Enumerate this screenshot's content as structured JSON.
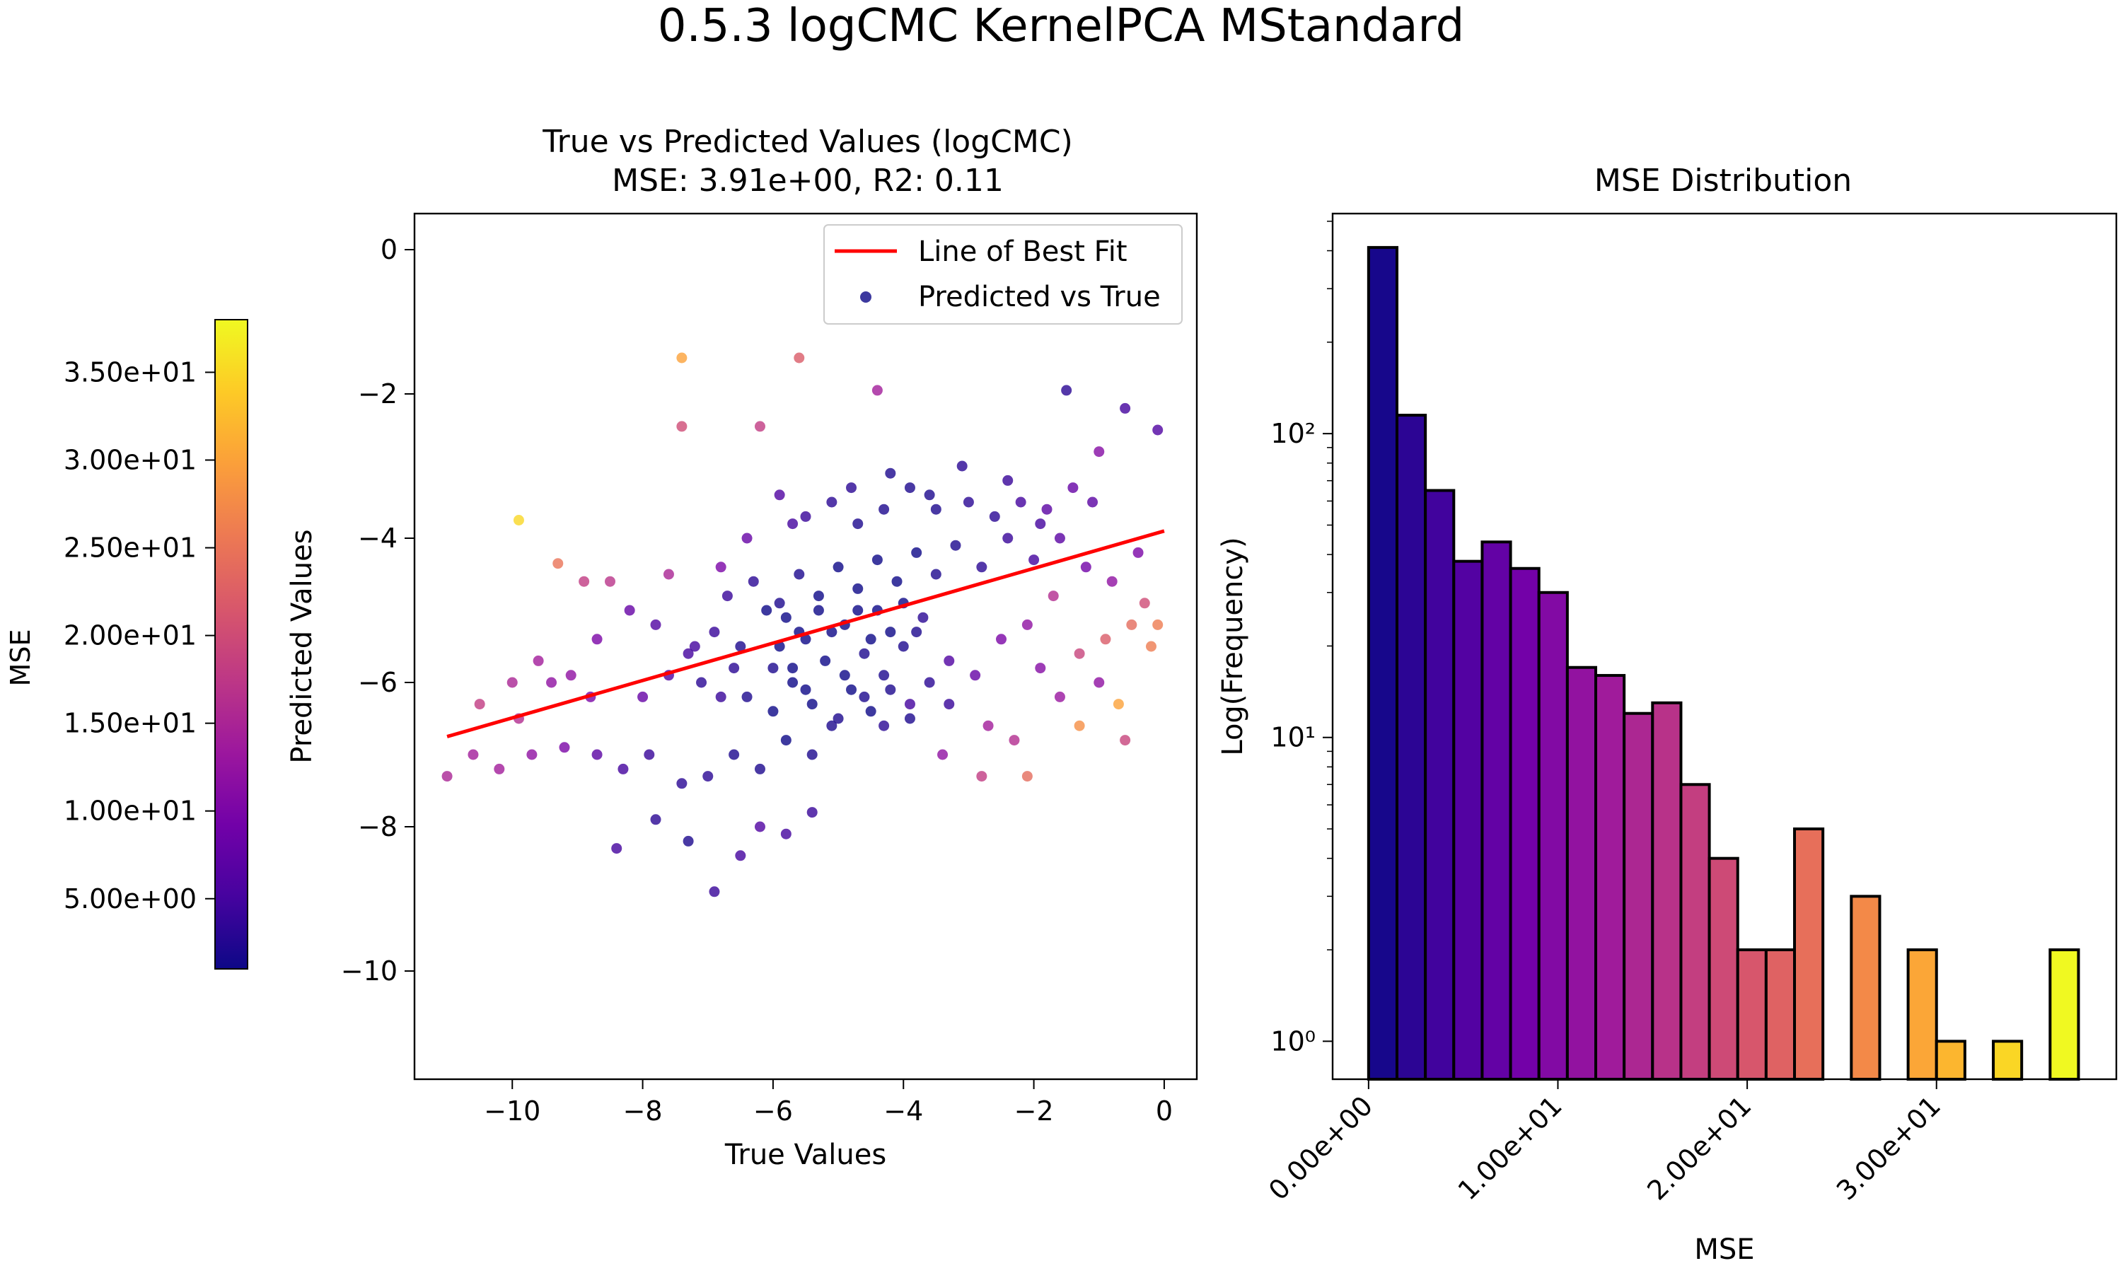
{
  "figure": {
    "suptitle": "0.5.3 logCMC KernelPCA MStandard"
  },
  "colorbar": {
    "label": "MSE",
    "ticks": [
      "5.00e+00",
      "1.00e+01",
      "1.50e+01",
      "2.00e+01",
      "2.50e+01",
      "3.00e+01",
      "3.50e+01"
    ],
    "tick_values": [
      5,
      10,
      15,
      20,
      25,
      30,
      35
    ],
    "range": [
      1,
      38
    ],
    "colormap": "plasma"
  },
  "colormap_stops": [
    "#0d0887",
    "#46039f",
    "#7201a8",
    "#9c179e",
    "#bd3786",
    "#d8576b",
    "#ed7953",
    "#fb9f3a",
    "#fdca26",
    "#f0f921"
  ],
  "chart_data": [
    {
      "type": "scatter",
      "title_line1": "True vs Predicted Values (logCMC)",
      "title_line2": "MSE: 3.91e+00, R2: 0.11",
      "xlabel": "True Values",
      "ylabel": "Predicted Values",
      "xlim": [
        -11.5,
        0.5
      ],
      "ylim": [
        -11.5,
        0.5
      ],
      "xticks": [
        -10,
        -8,
        -6,
        -4,
        -2,
        0
      ],
      "xtick_labels": [
        "−10",
        "−8",
        "−6",
        "−4",
        "−2",
        "0"
      ],
      "yticks": [
        0,
        -2,
        -4,
        -6,
        -8,
        -10
      ],
      "ytick_labels": [
        "0",
        "−2",
        "−4",
        "−6",
        "−8",
        "−10"
      ],
      "legend": {
        "placement": "top-right",
        "fit_label": "Line of Best Fit",
        "scatter_label": "Predicted vs True"
      },
      "best_fit": {
        "x": [
          -11.0,
          0.0
        ],
        "y": [
          -6.75,
          -3.9
        ],
        "color": "#ff0000"
      },
      "points": [
        [
          -9.9,
          -3.75
        ],
        [
          -7.4,
          -1.5
        ],
        [
          -5.6,
          -1.5
        ],
        [
          -7.4,
          -2.45
        ],
        [
          -6.2,
          -2.45
        ],
        [
          -4.4,
          -1.95
        ],
        [
          -1.5,
          -1.95
        ],
        [
          -0.6,
          -2.2
        ],
        [
          -0.1,
          -2.5
        ],
        [
          -9.3,
          -4.35
        ],
        [
          -8.9,
          -4.6
        ],
        [
          -8.5,
          -4.6
        ],
        [
          -7.6,
          -4.5
        ],
        [
          -6.8,
          -4.4
        ],
        [
          -6.4,
          -4.0
        ],
        [
          -5.7,
          -3.8
        ],
        [
          -4.8,
          -3.3
        ],
        [
          -4.2,
          -3.1
        ],
        [
          -3.6,
          -3.4
        ],
        [
          -3.1,
          -3.0
        ],
        [
          -2.4,
          -3.2
        ],
        [
          -1.9,
          -3.8
        ],
        [
          -1.1,
          -3.5
        ],
        [
          -0.4,
          -4.2
        ],
        [
          -10.5,
          -6.3
        ],
        [
          -10.0,
          -6.0
        ],
        [
          -9.6,
          -5.7
        ],
        [
          -9.1,
          -5.9
        ],
        [
          -8.7,
          -5.4
        ],
        [
          -8.2,
          -5.0
        ],
        [
          -7.8,
          -5.2
        ],
        [
          -7.3,
          -5.6
        ],
        [
          -6.9,
          -5.3
        ],
        [
          -6.5,
          -5.5
        ],
        [
          -6.0,
          -5.8
        ],
        [
          -5.8,
          -5.1
        ],
        [
          -5.5,
          -5.4
        ],
        [
          -5.2,
          -5.7
        ],
        [
          -4.9,
          -5.2
        ],
        [
          -4.6,
          -5.6
        ],
        [
          -4.3,
          -5.9
        ],
        [
          -4.0,
          -5.5
        ],
        [
          -3.7,
          -5.1
        ],
        [
          -3.3,
          -5.7
        ],
        [
          -2.9,
          -5.9
        ],
        [
          -2.5,
          -5.4
        ],
        [
          -2.1,
          -5.2
        ],
        [
          -1.7,
          -4.8
        ],
        [
          -1.3,
          -5.6
        ],
        [
          -0.9,
          -5.4
        ],
        [
          -0.5,
          -5.2
        ],
        [
          -0.1,
          -5.2
        ],
        [
          -11.0,
          -7.3
        ],
        [
          -10.6,
          -7.0
        ],
        [
          -10.2,
          -7.2
        ],
        [
          -9.7,
          -7.0
        ],
        [
          -9.2,
          -6.9
        ],
        [
          -8.7,
          -7.0
        ],
        [
          -8.3,
          -7.2
        ],
        [
          -7.9,
          -7.0
        ],
        [
          -7.4,
          -7.4
        ],
        [
          -7.0,
          -7.3
        ],
        [
          -6.6,
          -7.0
        ],
        [
          -6.2,
          -7.2
        ],
        [
          -5.8,
          -6.8
        ],
        [
          -5.4,
          -7.0
        ],
        [
          -5.0,
          -6.5
        ],
        [
          -4.6,
          -6.2
        ],
        [
          -4.3,
          -6.6
        ],
        [
          -3.9,
          -6.3
        ],
        [
          -3.4,
          -7.0
        ],
        [
          -2.8,
          -7.3
        ],
        [
          -2.1,
          -7.3
        ],
        [
          -1.3,
          -6.6
        ],
        [
          -0.7,
          -6.3
        ],
        [
          -8.4,
          -8.3
        ],
        [
          -7.8,
          -7.9
        ],
        [
          -7.3,
          -8.2
        ],
        [
          -6.9,
          -8.9
        ],
        [
          -6.5,
          -8.4
        ],
        [
          -6.2,
          -8.0
        ],
        [
          -5.8,
          -8.1
        ],
        [
          -5.4,
          -7.8
        ],
        [
          -6.7,
          -4.8
        ],
        [
          -6.3,
          -4.6
        ],
        [
          -5.9,
          -4.9
        ],
        [
          -5.6,
          -4.5
        ],
        [
          -5.3,
          -4.8
        ],
        [
          -5.0,
          -4.4
        ],
        [
          -4.7,
          -4.7
        ],
        [
          -4.4,
          -4.3
        ],
        [
          -4.1,
          -4.6
        ],
        [
          -3.8,
          -4.2
        ],
        [
          -3.5,
          -4.5
        ],
        [
          -3.2,
          -4.1
        ],
        [
          -2.8,
          -4.4
        ],
        [
          -2.4,
          -4.0
        ],
        [
          -2.0,
          -4.3
        ],
        [
          -1.6,
          -4.0
        ],
        [
          -1.2,
          -4.4
        ],
        [
          -0.8,
          -4.6
        ],
        [
          -6.4,
          -6.2
        ],
        [
          -6.0,
          -6.4
        ],
        [
          -5.7,
          -6.0
        ],
        [
          -5.4,
          -6.3
        ],
        [
          -5.1,
          -6.6
        ],
        [
          -4.8,
          -6.1
        ],
        [
          -4.5,
          -6.4
        ],
        [
          -4.2,
          -6.1
        ],
        [
          -3.9,
          -6.5
        ],
        [
          -3.6,
          -6.0
        ],
        [
          -3.3,
          -6.3
        ],
        [
          -5.9,
          -3.4
        ],
        [
          -5.5,
          -3.7
        ],
        [
          -5.1,
          -3.5
        ],
        [
          -4.7,
          -3.8
        ],
        [
          -4.3,
          -3.6
        ],
        [
          -3.9,
          -3.3
        ],
        [
          -3.5,
          -3.6
        ],
        [
          -3.0,
          -3.5
        ],
        [
          -2.6,
          -3.7
        ],
        [
          -2.2,
          -3.5
        ],
        [
          -1.8,
          -3.6
        ],
        [
          -1.4,
          -3.3
        ],
        [
          -1.0,
          -2.8
        ],
        [
          -6.1,
          -5.0
        ],
        [
          -5.9,
          -5.5
        ],
        [
          -5.7,
          -5.8
        ],
        [
          -5.6,
          -5.3
        ],
        [
          -5.5,
          -6.1
        ],
        [
          -5.3,
          -5.0
        ],
        [
          -5.1,
          -5.3
        ],
        [
          -4.9,
          -5.9
        ],
        [
          -4.7,
          -5.0
        ],
        [
          -4.5,
          -5.4
        ],
        [
          -4.4,
          -5.0
        ],
        [
          -4.2,
          -5.3
        ],
        [
          -4.0,
          -4.9
        ],
        [
          -3.8,
          -5.3
        ],
        [
          -7.1,
          -6.0
        ],
        [
          -6.8,
          -6.2
        ],
        [
          -6.6,
          -5.8
        ],
        [
          -7.2,
          -5.5
        ],
        [
          -7.6,
          -5.9
        ],
        [
          -8.0,
          -6.2
        ],
        [
          -8.8,
          -6.2
        ],
        [
          -9.4,
          -6.0
        ],
        [
          -9.9,
          -6.5
        ],
        [
          -2.7,
          -6.6
        ],
        [
          -2.3,
          -6.8
        ],
        [
          -1.9,
          -5.8
        ],
        [
          -1.6,
          -6.2
        ],
        [
          -1.0,
          -6.0
        ],
        [
          -0.6,
          -6.8
        ],
        [
          -0.3,
          -4.9
        ],
        [
          -0.2,
          -5.5
        ]
      ],
      "point_mse": [
        35,
        30,
        22,
        20,
        18,
        14,
        3,
        5,
        6,
        25,
        18,
        17,
        15,
        10,
        8,
        5,
        3,
        2,
        2,
        3,
        4,
        5,
        7,
        10,
        18,
        15,
        14,
        12,
        10,
        8,
        6,
        5,
        4,
        2,
        2,
        1,
        1,
        1,
        1,
        2,
        2,
        2,
        3,
        6,
        8,
        10,
        12,
        16,
        19,
        22,
        24,
        26,
        15,
        14,
        14,
        12,
        10,
        7,
        5,
        4,
        3,
        3,
        2,
        2,
        1,
        2,
        2,
        2,
        3,
        5,
        12,
        18,
        24,
        28,
        30,
        5,
        3,
        2,
        4,
        5,
        6,
        5,
        4,
        4,
        3,
        2,
        2,
        1,
        1,
        1,
        1,
        1,
        1,
        2,
        2,
        3,
        4,
        5,
        7,
        9,
        12,
        2,
        1,
        1,
        1,
        2,
        1,
        1,
        2,
        2,
        3,
        4,
        6,
        4,
        3,
        2,
        2,
        2,
        2,
        3,
        3,
        5,
        7,
        8,
        11,
        1,
        1,
        1,
        1,
        1,
        1,
        1,
        1,
        1,
        1,
        1,
        1,
        1,
        2,
        3,
        4,
        3,
        5,
        6,
        8,
        10,
        12,
        16,
        14,
        16,
        11,
        13,
        12,
        19,
        20,
        26
      ]
    },
    {
      "type": "bar",
      "title": "MSE Distribution",
      "xlabel": "MSE",
      "ylabel": "Log(Frequency)",
      "yscale": "log",
      "xlim": [
        -1.9,
        39.5
      ],
      "ylim": [
        0.75,
        530
      ],
      "xticks": [
        0,
        10,
        20,
        30
      ],
      "xtick_labels": [
        "0.00e+00",
        "1.00e+01",
        "2.00e+01",
        "3.00e+01"
      ],
      "yticks": [
        1,
        10,
        100
      ],
      "ytick_labels": [
        "10⁰",
        "10¹",
        "10²"
      ],
      "bin_start": 0,
      "bin_width": 1.5,
      "counts": [
        410,
        115,
        65,
        38,
        44,
        36,
        30,
        17,
        16,
        12,
        13,
        7,
        4,
        2,
        2,
        5,
        0,
        3,
        0,
        2,
        1,
        0,
        1,
        0,
        2
      ]
    }
  ]
}
